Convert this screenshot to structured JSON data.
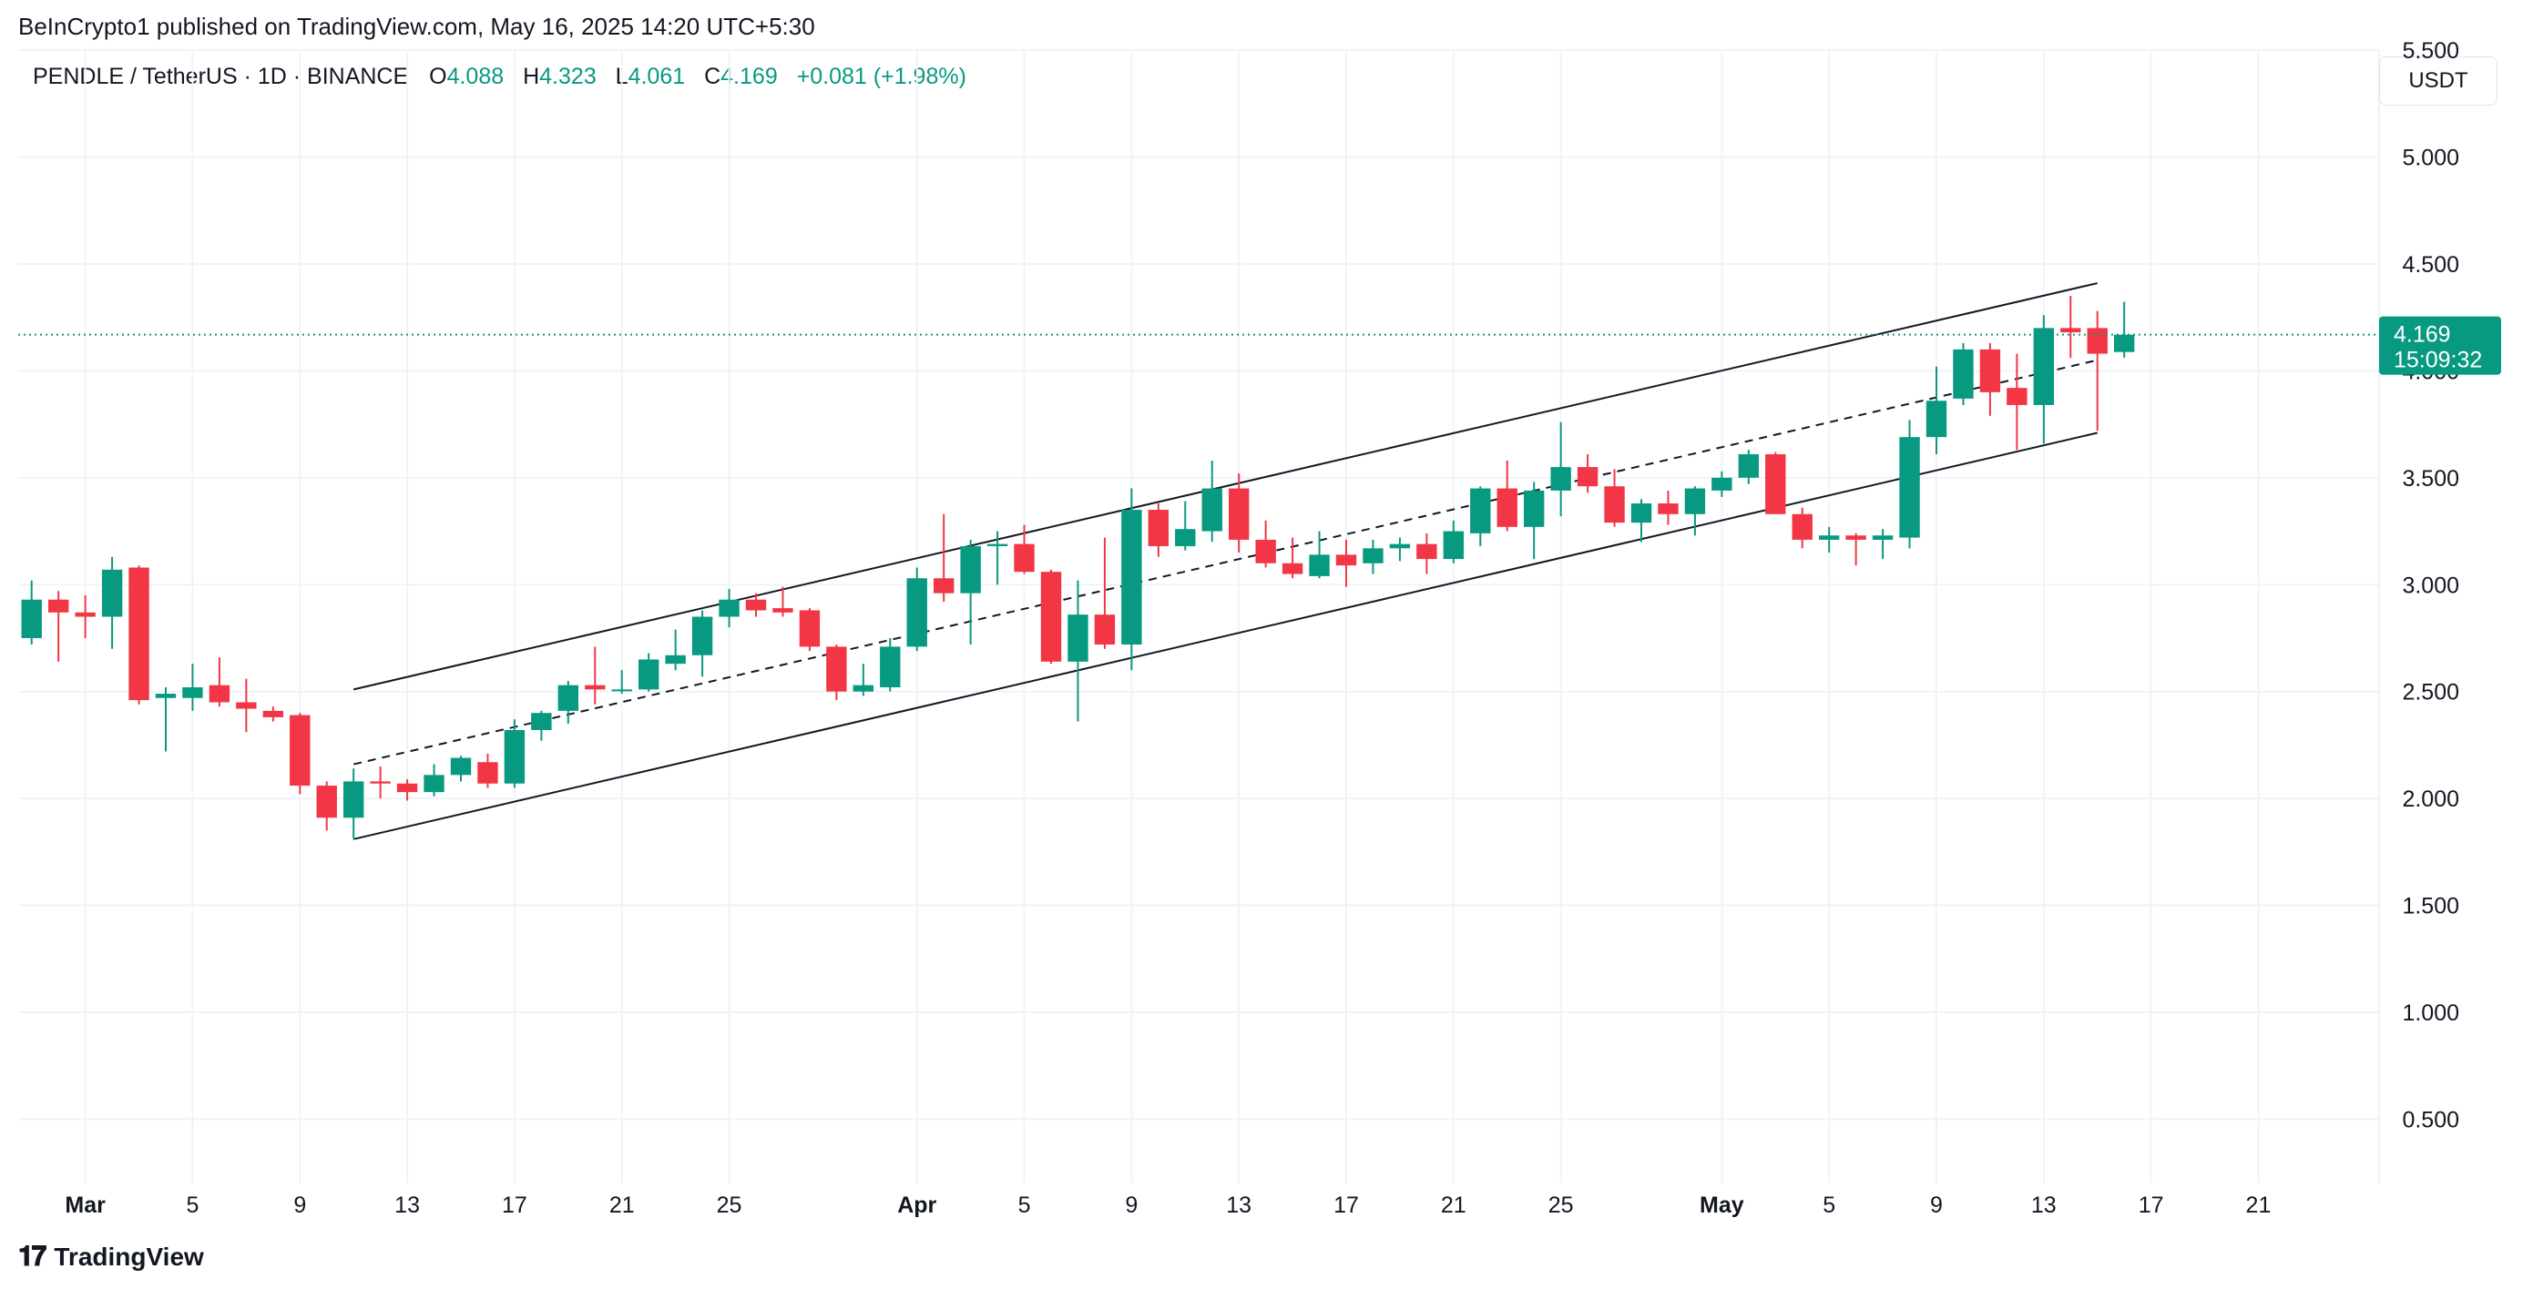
{
  "header": {
    "published_by": "BeInCrypto1 published on TradingView.com, May 16, 2025 14:20 UTC+5:30"
  },
  "legend": {
    "symbol": "PENDLE / TetherUS · 1D · BINANCE",
    "o_label": "O",
    "o_value": "4.088",
    "h_label": "H",
    "h_value": "4.323",
    "l_label": "L",
    "l_value": "4.061",
    "c_label": "C",
    "c_value": "4.169",
    "change": "+0.081 (+1.98%)"
  },
  "currency_button": "USDT",
  "price_badge": {
    "price": "4.169",
    "countdown": "15:09:32"
  },
  "footer": {
    "logo_mark": "𝟏𝟕",
    "logo_text": "TradingView"
  },
  "colors": {
    "up": "#089981",
    "down": "#f23645",
    "grid": "#f0f3fa",
    "text": "#131722",
    "last_price_line": "#089981"
  },
  "chart_data": {
    "type": "candlestick",
    "title": "PENDLE / TetherUS · 1D · BINANCE",
    "ylim": [
      0.2,
      5.5
    ],
    "y_ticks": [
      {
        "value": 0.5,
        "label": "0.500"
      },
      {
        "value": 1.0,
        "label": "1.000"
      },
      {
        "value": 1.5,
        "label": "1.500"
      },
      {
        "value": 2.0,
        "label": "2.000"
      },
      {
        "value": 2.5,
        "label": "2.500"
      },
      {
        "value": 3.0,
        "label": "3.000"
      },
      {
        "value": 3.5,
        "label": "3.500"
      },
      {
        "value": 4.0,
        "label": "4.000"
      },
      {
        "value": 4.5,
        "label": "4.500"
      },
      {
        "value": 5.0,
        "label": "5.000"
      },
      {
        "value": 5.5,
        "label": "5.500"
      }
    ],
    "x_ticks": [
      {
        "day": 1,
        "label": "Mar",
        "bold": true
      },
      {
        "day": 5,
        "label": "5",
        "bold": false
      },
      {
        "day": 9,
        "label": "9",
        "bold": false
      },
      {
        "day": 13,
        "label": "13",
        "bold": false
      },
      {
        "day": 17,
        "label": "17",
        "bold": false
      },
      {
        "day": 21,
        "label": "21",
        "bold": false
      },
      {
        "day": 25,
        "label": "25",
        "bold": false
      },
      {
        "day": 32,
        "label": "Apr",
        "bold": true
      },
      {
        "day": 36,
        "label": "5",
        "bold": false
      },
      {
        "day": 40,
        "label": "9",
        "bold": false
      },
      {
        "day": 44,
        "label": "13",
        "bold": false
      },
      {
        "day": 48,
        "label": "17",
        "bold": false
      },
      {
        "day": 52,
        "label": "21",
        "bold": false
      },
      {
        "day": 56,
        "label": "25",
        "bold": false
      },
      {
        "day": 62,
        "label": "May",
        "bold": true
      },
      {
        "day": 66,
        "label": "5",
        "bold": false
      },
      {
        "day": 70,
        "label": "9",
        "bold": false
      },
      {
        "day": 74,
        "label": "13",
        "bold": false
      },
      {
        "day": 78,
        "label": "17",
        "bold": false
      },
      {
        "day": 82,
        "label": "21",
        "bold": false
      }
    ],
    "x_range_days": [
      -1.5,
      86.5
    ],
    "last_price": 4.169,
    "candles": [
      {
        "day": -1,
        "o": 2.75,
        "h": 3.02,
        "l": 2.72,
        "c": 2.93
      },
      {
        "day": 0,
        "o": 2.93,
        "h": 2.97,
        "l": 2.64,
        "c": 2.87
      },
      {
        "day": 1,
        "o": 2.87,
        "h": 2.95,
        "l": 2.75,
        "c": 2.85
      },
      {
        "day": 2,
        "o": 2.85,
        "h": 3.13,
        "l": 2.7,
        "c": 3.07
      },
      {
        "day": 3,
        "o": 3.08,
        "h": 3.09,
        "l": 2.44,
        "c": 2.46
      },
      {
        "day": 4,
        "o": 2.47,
        "h": 2.52,
        "l": 2.22,
        "c": 2.49
      },
      {
        "day": 5,
        "o": 2.47,
        "h": 2.63,
        "l": 2.41,
        "c": 2.52
      },
      {
        "day": 6,
        "o": 2.53,
        "h": 2.66,
        "l": 2.43,
        "c": 2.45
      },
      {
        "day": 7,
        "o": 2.45,
        "h": 2.56,
        "l": 2.31,
        "c": 2.42
      },
      {
        "day": 8,
        "o": 2.41,
        "h": 2.43,
        "l": 2.36,
        "c": 2.38
      },
      {
        "day": 9,
        "o": 2.39,
        "h": 2.4,
        "l": 2.02,
        "c": 2.06
      },
      {
        "day": 10,
        "o": 2.06,
        "h": 2.08,
        "l": 1.85,
        "c": 1.91
      },
      {
        "day": 11,
        "o": 1.91,
        "h": 2.14,
        "l": 1.81,
        "c": 2.08
      },
      {
        "day": 12,
        "o": 2.08,
        "h": 2.15,
        "l": 2.0,
        "c": 2.07
      },
      {
        "day": 13,
        "o": 2.07,
        "h": 2.09,
        "l": 1.99,
        "c": 2.03
      },
      {
        "day": 14,
        "o": 2.03,
        "h": 2.16,
        "l": 2.01,
        "c": 2.11
      },
      {
        "day": 15,
        "o": 2.11,
        "h": 2.2,
        "l": 2.08,
        "c": 2.19
      },
      {
        "day": 16,
        "o": 2.17,
        "h": 2.21,
        "l": 2.05,
        "c": 2.07
      },
      {
        "day": 17,
        "o": 2.07,
        "h": 2.37,
        "l": 2.05,
        "c": 2.32
      },
      {
        "day": 18,
        "o": 2.32,
        "h": 2.41,
        "l": 2.27,
        "c": 2.4
      },
      {
        "day": 19,
        "o": 2.41,
        "h": 2.55,
        "l": 2.35,
        "c": 2.53
      },
      {
        "day": 20,
        "o": 2.53,
        "h": 2.71,
        "l": 2.44,
        "c": 2.51
      },
      {
        "day": 21,
        "o": 2.51,
        "h": 2.6,
        "l": 2.49,
        "c": 2.51
      },
      {
        "day": 22,
        "o": 2.51,
        "h": 2.68,
        "l": 2.5,
        "c": 2.65
      },
      {
        "day": 23,
        "o": 2.63,
        "h": 2.79,
        "l": 2.6,
        "c": 2.67
      },
      {
        "day": 24,
        "o": 2.67,
        "h": 2.88,
        "l": 2.57,
        "c": 2.85
      },
      {
        "day": 25,
        "o": 2.85,
        "h": 2.98,
        "l": 2.8,
        "c": 2.93
      },
      {
        "day": 26,
        "o": 2.93,
        "h": 2.96,
        "l": 2.85,
        "c": 2.88
      },
      {
        "day": 27,
        "o": 2.89,
        "h": 2.99,
        "l": 2.85,
        "c": 2.87
      },
      {
        "day": 28,
        "o": 2.88,
        "h": 2.89,
        "l": 2.69,
        "c": 2.71
      },
      {
        "day": 29,
        "o": 2.71,
        "h": 2.72,
        "l": 2.46,
        "c": 2.5
      },
      {
        "day": 30,
        "o": 2.5,
        "h": 2.63,
        "l": 2.48,
        "c": 2.53
      },
      {
        "day": 31,
        "o": 2.52,
        "h": 2.75,
        "l": 2.5,
        "c": 2.71
      },
      {
        "day": 32,
        "o": 2.71,
        "h": 3.08,
        "l": 2.69,
        "c": 3.03
      },
      {
        "day": 33,
        "o": 3.03,
        "h": 3.33,
        "l": 2.92,
        "c": 2.96
      },
      {
        "day": 34,
        "o": 2.96,
        "h": 3.21,
        "l": 2.72,
        "c": 3.18
      },
      {
        "day": 35,
        "o": 3.18,
        "h": 3.25,
        "l": 3.0,
        "c": 3.19
      },
      {
        "day": 36,
        "o": 3.19,
        "h": 3.28,
        "l": 3.05,
        "c": 3.06
      },
      {
        "day": 37,
        "o": 3.06,
        "h": 3.07,
        "l": 2.63,
        "c": 2.64
      },
      {
        "day": 38,
        "o": 2.64,
        "h": 3.02,
        "l": 2.36,
        "c": 2.86
      },
      {
        "day": 39,
        "o": 2.86,
        "h": 3.22,
        "l": 2.7,
        "c": 2.72
      },
      {
        "day": 40,
        "o": 2.72,
        "h": 3.45,
        "l": 2.6,
        "c": 3.35
      },
      {
        "day": 41,
        "o": 3.35,
        "h": 3.38,
        "l": 3.13,
        "c": 3.18
      },
      {
        "day": 42,
        "o": 3.18,
        "h": 3.39,
        "l": 3.16,
        "c": 3.26
      },
      {
        "day": 43,
        "o": 3.25,
        "h": 3.58,
        "l": 3.2,
        "c": 3.45
      },
      {
        "day": 44,
        "o": 3.45,
        "h": 3.52,
        "l": 3.15,
        "c": 3.21
      },
      {
        "day": 45,
        "o": 3.21,
        "h": 3.3,
        "l": 3.08,
        "c": 3.1
      },
      {
        "day": 46,
        "o": 3.1,
        "h": 3.22,
        "l": 3.03,
        "c": 3.05
      },
      {
        "day": 47,
        "o": 3.04,
        "h": 3.25,
        "l": 3.03,
        "c": 3.14
      },
      {
        "day": 48,
        "o": 3.14,
        "h": 3.21,
        "l": 2.99,
        "c": 3.09
      },
      {
        "day": 49,
        "o": 3.1,
        "h": 3.21,
        "l": 3.05,
        "c": 3.17
      },
      {
        "day": 50,
        "o": 3.17,
        "h": 3.22,
        "l": 3.11,
        "c": 3.19
      },
      {
        "day": 51,
        "o": 3.19,
        "h": 3.24,
        "l": 3.05,
        "c": 3.12
      },
      {
        "day": 52,
        "o": 3.12,
        "h": 3.3,
        "l": 3.1,
        "c": 3.25
      },
      {
        "day": 53,
        "o": 3.24,
        "h": 3.46,
        "l": 3.18,
        "c": 3.45
      },
      {
        "day": 54,
        "o": 3.45,
        "h": 3.58,
        "l": 3.25,
        "c": 3.27
      },
      {
        "day": 55,
        "o": 3.27,
        "h": 3.48,
        "l": 3.12,
        "c": 3.44
      },
      {
        "day": 56,
        "o": 3.44,
        "h": 3.76,
        "l": 3.32,
        "c": 3.55
      },
      {
        "day": 57,
        "o": 3.55,
        "h": 3.61,
        "l": 3.43,
        "c": 3.46
      },
      {
        "day": 58,
        "o": 3.46,
        "h": 3.54,
        "l": 3.27,
        "c": 3.29
      },
      {
        "day": 59,
        "o": 3.29,
        "h": 3.4,
        "l": 3.2,
        "c": 3.38
      },
      {
        "day": 60,
        "o": 3.38,
        "h": 3.44,
        "l": 3.28,
        "c": 3.33
      },
      {
        "day": 61,
        "o": 3.33,
        "h": 3.46,
        "l": 3.23,
        "c": 3.45
      },
      {
        "day": 62,
        "o": 3.44,
        "h": 3.53,
        "l": 3.41,
        "c": 3.5
      },
      {
        "day": 63,
        "o": 3.5,
        "h": 3.63,
        "l": 3.47,
        "c": 3.61
      },
      {
        "day": 64,
        "o": 3.61,
        "h": 3.62,
        "l": 3.33,
        "c": 3.33
      },
      {
        "day": 65,
        "o": 3.33,
        "h": 3.36,
        "l": 3.17,
        "c": 3.21
      },
      {
        "day": 66,
        "o": 3.21,
        "h": 3.27,
        "l": 3.15,
        "c": 3.23
      },
      {
        "day": 67,
        "o": 3.23,
        "h": 3.24,
        "l": 3.09,
        "c": 3.21
      },
      {
        "day": 68,
        "o": 3.21,
        "h": 3.26,
        "l": 3.12,
        "c": 3.23
      },
      {
        "day": 69,
        "o": 3.22,
        "h": 3.77,
        "l": 3.17,
        "c": 3.69
      },
      {
        "day": 70,
        "o": 3.69,
        "h": 4.02,
        "l": 3.61,
        "c": 3.86
      },
      {
        "day": 71,
        "o": 3.87,
        "h": 4.13,
        "l": 3.84,
        "c": 4.1
      },
      {
        "day": 72,
        "o": 4.1,
        "h": 4.13,
        "l": 3.79,
        "c": 3.9
      },
      {
        "day": 73,
        "o": 3.92,
        "h": 4.08,
        "l": 3.63,
        "c": 3.84
      },
      {
        "day": 74,
        "o": 3.84,
        "h": 4.26,
        "l": 3.66,
        "c": 4.2
      },
      {
        "day": 75,
        "o": 4.2,
        "h": 4.35,
        "l": 4.06,
        "c": 4.18
      },
      {
        "day": 76,
        "o": 4.2,
        "h": 4.28,
        "l": 3.72,
        "c": 4.08
      },
      {
        "day": 77,
        "o": 4.088,
        "h": 4.323,
        "l": 4.061,
        "c": 4.169
      }
    ],
    "channel_lines": [
      {
        "name": "upper",
        "style": "solid",
        "from": {
          "day": 11,
          "value": 2.51
        },
        "to": {
          "day": 76,
          "value": 4.41
        }
      },
      {
        "name": "middle",
        "style": "dashed",
        "from": {
          "day": 11,
          "value": 2.16
        },
        "to": {
          "day": 76,
          "value": 4.05
        }
      },
      {
        "name": "lower",
        "style": "solid",
        "from": {
          "day": 11,
          "value": 1.81
        },
        "to": {
          "day": 76,
          "value": 3.71
        }
      }
    ]
  }
}
